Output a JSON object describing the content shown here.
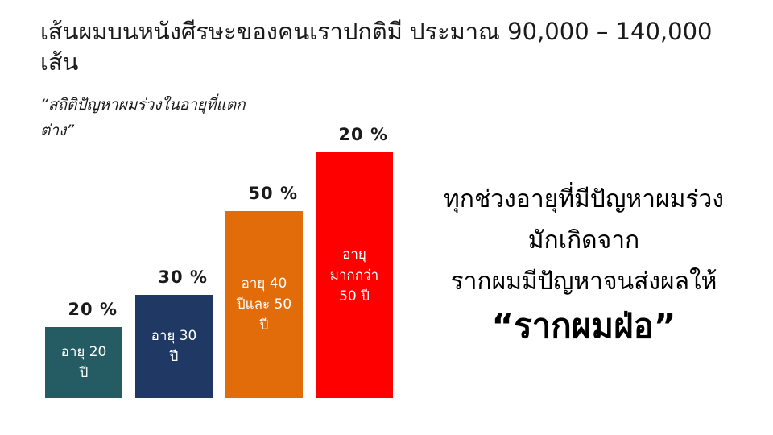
{
  "title": "เส้นผมบนหนังศีรษะของคนเราปกติมี ประมาณ 90,000 – 140,000 เส้น",
  "subtitle": "“สถิติปัญหาผมร่วงในอายุที่แตกต่าง”",
  "bars": [
    {
      "lines": [
        "อายุ 20",
        "ปี"
      ],
      "value_label": "20 %",
      "color": "#255b63"
    },
    {
      "lines": [
        "อายุ 30",
        "ปี"
      ],
      "value_label": "30 %",
      "color": "#1f3864"
    },
    {
      "lines": [
        "อายุ 40",
        "ปีและ 50",
        "ปี"
      ],
      "value_label": "50 %",
      "color": "#e36c0a"
    },
    {
      "lines": [
        "อายุ",
        "มากกว่า",
        "50 ปี"
      ],
      "value_label": "20 %",
      "color": "#ff0000"
    }
  ],
  "message": {
    "lines": [
      "ทุกช่วงอายุที่มีปัญหาผมร่วง",
      "มักเกิดจาก",
      "รากผมมีปัญหาจนส่งผลให้"
    ],
    "emphasis": "“รากผมฝ่อ”"
  }
}
